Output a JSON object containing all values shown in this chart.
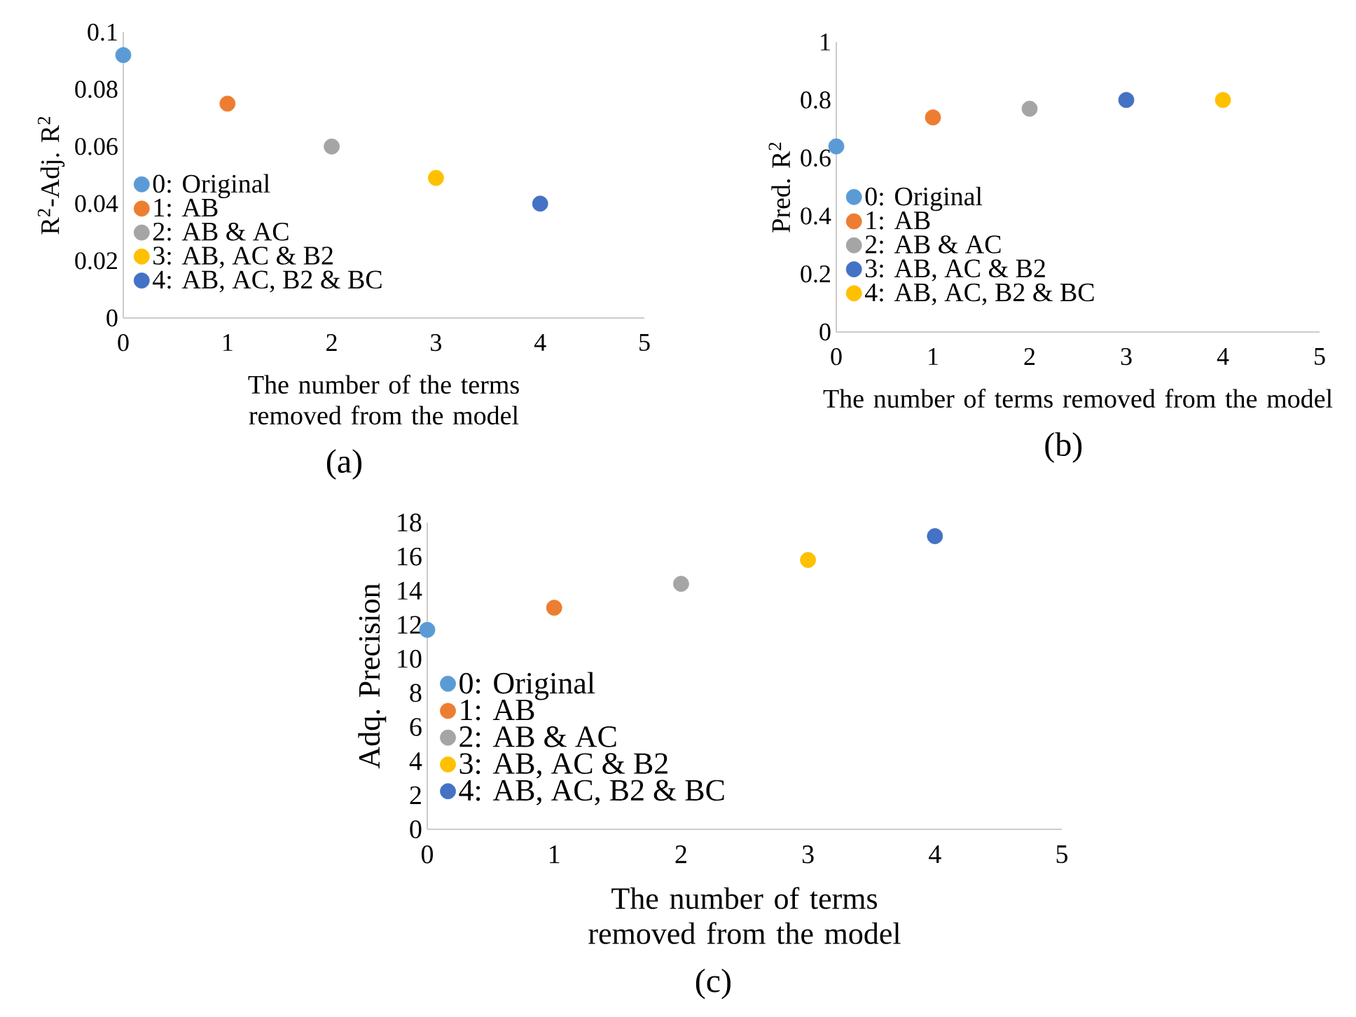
{
  "chart_data": [
    {
      "type": "scatter",
      "ylabel": "R$^{2}$-Adj. R$^{2}$",
      "xlabel": "The number of the terms removed from the model",
      "annotations": [
        "(a)"
      ],
      "xlim": [
        0,
        5
      ],
      "xticks": [
        0,
        1,
        2,
        3,
        4,
        5
      ],
      "ylim": [
        0,
        0.1
      ],
      "yticks": [
        0,
        0.02,
        0.04,
        0.06,
        0.08,
        0.1
      ],
      "legend": "left",
      "marker": "circle",
      "series": [
        {
          "name": "0: Original",
          "color": "#5b9bd5",
          "x": [
            0
          ],
          "values": [
            0.092
          ]
        },
        {
          "name": "1: AB",
          "color": "#ed7d31",
          "x": [
            1
          ],
          "values": [
            0.075
          ]
        },
        {
          "name": "2: AB & AC",
          "color": "#a5a5a5",
          "x": [
            2
          ],
          "values": [
            0.06
          ]
        },
        {
          "name": "3: AB, AC & B2",
          "color": "#ffc000",
          "x": [
            3
          ],
          "values": [
            0.049
          ]
        },
        {
          "name": "4: AB, AC, B2 & BC",
          "color": "#4472c4",
          "x": [
            4
          ],
          "values": [
            0.04
          ]
        }
      ]
    },
    {
      "type": "scatter",
      "ylabel": "Pred. R$^{2}$",
      "xlabel": "The number of terms removed from the model",
      "annotations": [
        "(b)"
      ],
      "xlim": [
        0,
        5
      ],
      "xticks": [
        0,
        1,
        2,
        3,
        4,
        5
      ],
      "ylim": [
        0,
        1
      ],
      "yticks": [
        0,
        0.2,
        0.4,
        0.6,
        0.8,
        1
      ],
      "legend": "left",
      "marker": "circle",
      "series": [
        {
          "name": "0: Original",
          "color": "#5b9bd5",
          "x": [
            0
          ],
          "values": [
            0.64
          ]
        },
        {
          "name": "1: AB",
          "color": "#ed7d31",
          "x": [
            1
          ],
          "values": [
            0.74
          ]
        },
        {
          "name": "2: AB & AC",
          "color": "#a5a5a5",
          "x": [
            2
          ],
          "values": [
            0.77
          ]
        },
        {
          "name": "3: AB, AC & B2",
          "color": "#4472c4",
          "x": [
            3
          ],
          "values": [
            0.8
          ]
        },
        {
          "name": "4: AB, AC, B2 & BC",
          "color": "#ffc000",
          "x": [
            4
          ],
          "values": [
            0.8
          ]
        }
      ]
    },
    {
      "type": "scatter",
      "ylabel": "Adq. Precision",
      "xlabel": "The number of terms removed from the model",
      "annotations": [
        "(c)"
      ],
      "xlim": [
        0,
        5
      ],
      "xticks": [
        0,
        1,
        2,
        3,
        4,
        5
      ],
      "ylim": [
        0,
        18
      ],
      "yticks": [
        0,
        2,
        4,
        6,
        8,
        10,
        12,
        14,
        16,
        18
      ],
      "legend": "left",
      "marker": "circle",
      "series": [
        {
          "name": "0: Original",
          "color": "#5b9bd5",
          "x": [
            0
          ],
          "values": [
            11.7
          ]
        },
        {
          "name": "1: AB",
          "color": "#ed7d31",
          "x": [
            1
          ],
          "values": [
            13.0
          ]
        },
        {
          "name": "2: AB & AC",
          "color": "#a5a5a5",
          "x": [
            2
          ],
          "values": [
            14.4
          ]
        },
        {
          "name": "3: AB, AC & B2",
          "color": "#ffc000",
          "x": [
            3
          ],
          "values": [
            15.8
          ]
        },
        {
          "name": "4: AB, AC, B2 & BC",
          "color": "#4472c4",
          "x": [
            4
          ],
          "values": [
            17.2
          ]
        }
      ]
    }
  ]
}
